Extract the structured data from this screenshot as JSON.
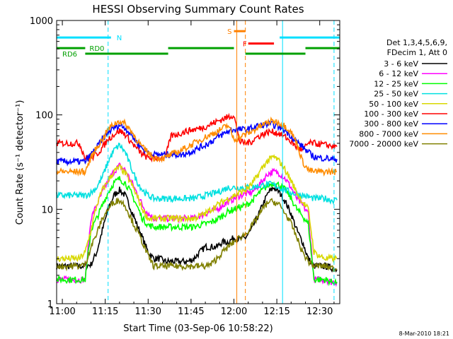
{
  "chart_data": {
    "type": "line",
    "title": "HESSI Observing Summary Count Rates",
    "xlabel": "Start Time (03-Sep-06 10:58:22)",
    "ylabel": "Count Rate (s⁻¹ detector⁻¹)",
    "yscale": "log",
    "xlim": [
      "10:58",
      "12:37"
    ],
    "ylim": [
      1,
      1000
    ],
    "x_ticks": [
      "11:00",
      "11:15",
      "11:30",
      "11:45",
      "12:00",
      "12:15",
      "12:30"
    ],
    "y_ticks": [
      "1",
      "10",
      "100",
      "1000"
    ],
    "grid": false,
    "legend_placement": "right",
    "legend_header": [
      "Det 1,3,4,5,6,9,",
      "FDecim 1, Att 0"
    ],
    "footer": "8-Mar-2010 18:21",
    "flags": [
      {
        "label": "N",
        "start": "10:58",
        "end": "11:17",
        "level": 660,
        "color": "#00e0ff"
      },
      {
        "label": "",
        "start": "12:16",
        "end": "12:37",
        "level": 660,
        "color": "#00e0ff"
      },
      {
        "label": "S",
        "start": "12:00",
        "end": "12:04",
        "level": 770,
        "color": "#ff8000"
      },
      {
        "label": "F",
        "start": "12:05",
        "end": "12:14",
        "level": 570,
        "color": "#ff0000"
      },
      {
        "label": "RD0",
        "start": "10:58",
        "end": "11:08",
        "level": 510,
        "color": "#00a000"
      },
      {
        "label": "",
        "start": "11:37",
        "end": "12:00",
        "level": 510,
        "color": "#00a000"
      },
      {
        "label": "",
        "start": "12:25",
        "end": "12:37",
        "level": 510,
        "color": "#00a000"
      },
      {
        "label": "RD6",
        "start": "11:08",
        "end": "11:37",
        "level": 445,
        "color": "#00a000"
      },
      {
        "label": "",
        "start": "12:04",
        "end": "12:25",
        "level": 445,
        "color": "#00a000"
      }
    ],
    "vlines": [
      {
        "time": "10:58",
        "color": "#00e0ff",
        "style": "solid"
      },
      {
        "time": "11:16",
        "color": "#00e0ff",
        "style": "dashed"
      },
      {
        "time": "12:01",
        "color": "#ff8000",
        "style": "solid"
      },
      {
        "time": "12:04",
        "color": "#ff8000",
        "style": "dashed"
      },
      {
        "time": "12:17",
        "color": "#00e0ff",
        "style": "solid"
      },
      {
        "time": "12:35",
        "color": "#00e0ff",
        "style": "dashed"
      }
    ],
    "x": [
      "10:58",
      "11:00",
      "11:02",
      "11:04",
      "11:06",
      "11:08",
      "11:10",
      "11:12",
      "11:14",
      "11:16",
      "11:18",
      "11:20",
      "11:22",
      "11:24",
      "11:26",
      "11:28",
      "11:30",
      "11:32",
      "11:34",
      "11:36",
      "11:38",
      "11:40",
      "11:42",
      "11:44",
      "11:46",
      "11:48",
      "11:50",
      "11:52",
      "11:54",
      "11:56",
      "11:58",
      "12:00",
      "12:02",
      "12:04",
      "12:06",
      "12:08",
      "12:10",
      "12:12",
      "12:14",
      "12:16",
      "12:18",
      "12:20",
      "12:22",
      "12:24",
      "12:26",
      "12:28",
      "12:30",
      "12:32",
      "12:34",
      "12:36"
    ],
    "series": [
      {
        "name": "3 - 6 keV",
        "color": "#000000",
        "values": [
          2.5,
          2.5,
          2.5,
          2.5,
          2.5,
          2.5,
          2.6,
          3.5,
          6,
          10,
          14,
          16,
          14,
          10,
          7,
          5,
          3.5,
          3,
          3,
          2.8,
          2.8,
          2.8,
          2.8,
          2.8,
          3,
          3.5,
          4,
          4,
          4,
          4.5,
          4.5,
          5,
          4.8,
          5,
          6,
          8,
          11,
          15,
          17,
          15,
          12,
          9,
          6,
          4.5,
          3,
          2.5,
          2.5,
          2.5,
          2.4,
          2.3
        ]
      },
      {
        "name": "6 - 12 keV",
        "color": "#ff00ff",
        "values": [
          1.8,
          1.8,
          1.8,
          1.8,
          1.8,
          1.8,
          8,
          11,
          15,
          20,
          25,
          29,
          26,
          20,
          15,
          11,
          9,
          8,
          8,
          8,
          8,
          8,
          8,
          8,
          8,
          8.5,
          9,
          9.5,
          10,
          11,
          12,
          13,
          14,
          14.5,
          15,
          17,
          20,
          24,
          25,
          24,
          21,
          17,
          13,
          11,
          9,
          1.8,
          1.8,
          1.8,
          1.7,
          1.7
        ]
      },
      {
        "name": "12 - 25 keV",
        "color": "#00ff00",
        "values": [
          1.8,
          1.8,
          1.8,
          1.8,
          1.8,
          1.8,
          6,
          8,
          11,
          15,
          19,
          21,
          19,
          15,
          11,
          8,
          6.8,
          6.5,
          6.5,
          6.5,
          6.5,
          6.5,
          6.5,
          6.5,
          6.5,
          6.8,
          7,
          7.3,
          7.8,
          8.5,
          9.5,
          10,
          10.5,
          11,
          12,
          14,
          16,
          18,
          19,
          18,
          16,
          13,
          10,
          8.5,
          7,
          1.8,
          1.8,
          1.8,
          1.7,
          1.7
        ]
      },
      {
        "name": "25 - 50 keV",
        "color": "#00e0e0",
        "values": [
          14,
          14,
          14,
          14,
          14,
          14,
          15,
          17,
          22,
          32,
          42,
          48,
          40,
          28,
          20,
          16,
          14,
          13,
          13,
          13,
          13,
          13,
          13,
          13,
          13,
          13.5,
          14,
          14.5,
          15,
          16,
          17,
          17,
          17,
          17,
          17,
          17.5,
          18,
          18.5,
          18,
          17,
          16,
          15,
          14.5,
          14,
          13.5,
          13,
          13,
          13,
          12.5,
          12.5
        ]
      },
      {
        "name": "50 - 100 keV",
        "color": "#d8d800",
        "values": [
          3,
          3,
          3,
          3,
          3,
          3.5,
          6,
          11,
          16,
          20,
          25,
          28,
          24,
          19,
          14,
          10,
          8,
          8,
          8,
          8,
          8,
          8,
          8,
          8,
          8,
          8.5,
          9,
          10,
          11,
          12,
          13,
          14,
          15,
          16,
          18,
          22,
          28,
          33,
          36,
          32,
          26,
          20,
          15,
          12,
          10,
          3.5,
          3.2,
          3,
          3,
          3
        ]
      },
      {
        "name": "100 - 300 keV",
        "color": "#ff0000",
        "values": [
          50,
          50,
          50,
          50,
          50,
          35,
          35,
          38,
          45,
          55,
          62,
          68,
          62,
          52,
          44,
          38,
          35,
          35,
          35,
          35,
          60,
          62,
          65,
          68,
          70,
          72,
          75,
          80,
          85,
          90,
          95,
          100,
          52,
          50,
          52,
          58,
          62,
          66,
          66,
          63,
          58,
          52,
          45,
          42,
          50,
          50,
          49,
          48,
          47,
          46
        ]
      },
      {
        "name": "300 - 800 keV",
        "color": "#0000ff",
        "values": [
          32,
          32,
          32,
          32,
          32,
          32,
          38,
          45,
          55,
          65,
          73,
          78,
          73,
          62,
          52,
          44,
          40,
          38,
          38,
          38,
          38,
          38,
          38,
          40,
          42,
          45,
          48,
          52,
          57,
          62,
          67,
          70,
          70,
          70,
          72,
          76,
          78,
          80,
          78,
          74,
          68,
          60,
          52,
          46,
          40,
          36,
          35,
          35,
          34,
          34
        ]
      },
      {
        "name": "800 - 7000 keV",
        "color": "#ff8c00",
        "values": [
          25,
          25,
          25,
          25,
          25,
          25,
          35,
          45,
          55,
          70,
          80,
          86,
          80,
          68,
          55,
          45,
          40,
          35,
          35,
          35,
          38,
          40,
          43,
          46,
          50,
          54,
          58,
          62,
          66,
          72,
          78,
          55,
          58,
          62,
          66,
          72,
          78,
          84,
          86,
          82,
          76,
          66,
          50,
          32,
          26,
          25,
          25,
          25,
          25,
          25
        ]
      },
      {
        "name": "7000 - 20000 keV",
        "color": "#808000",
        "values": [
          2.5,
          2.5,
          2.5,
          2.5,
          2.5,
          2.6,
          4,
          5.5,
          8,
          10,
          12,
          12.5,
          11,
          8,
          6,
          4.5,
          3.2,
          2.5,
          2.5,
          2.5,
          2.5,
          2.5,
          2.5,
          2.5,
          2.5,
          2.5,
          2.5,
          2.6,
          3,
          3.5,
          4,
          4.5,
          5,
          5.5,
          6.5,
          8,
          10,
          12,
          12,
          11,
          9,
          7,
          5,
          3.5,
          2.8,
          2.5,
          2.5,
          2.5,
          2.4,
          2.3
        ]
      }
    ]
  }
}
